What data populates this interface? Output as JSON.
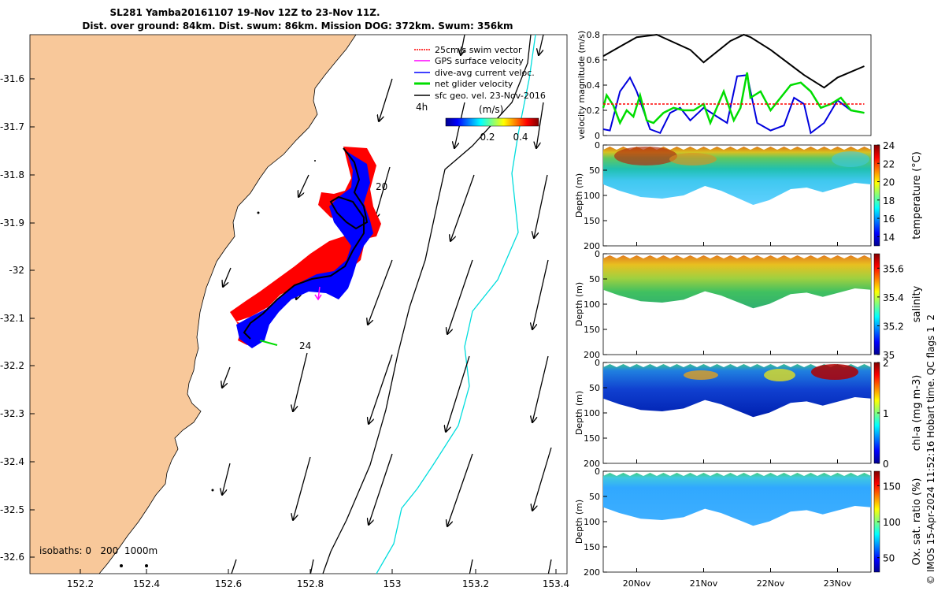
{
  "title": {
    "line1": "SL281 Yamba20161107 19-Nov 12Z to 23-Nov 11Z.",
    "line2": "Dist. over ground: 84km. Dist. swum: 86km. Mission DOG: 372km. Swum: 356km"
  },
  "map": {
    "lon_ticks": [
      "152.2",
      "152.4",
      "152.6",
      "152.8",
      "153",
      "153.2",
      "153.4"
    ],
    "lat_ticks": [
      "-31.6",
      "-31.7",
      "-31.8",
      "-31.9",
      "-32",
      "-32.1",
      "-32.2",
      "-32.3",
      "-32.4",
      "-32.5",
      "-32.6"
    ],
    "legend": [
      {
        "label": "25cm/s swim vector",
        "color": "#ff0000"
      },
      {
        "label": "GPS surface velocity",
        "color": "#ff00ff"
      },
      {
        "label": "dive-avg current veloc.",
        "color": "#0000ff"
      },
      {
        "label": "net glider velocity",
        "color": "#00dd00"
      },
      {
        "label": "sfc geo. vel. 23-Nov-2016",
        "color": "#000000"
      }
    ],
    "colorbar_label": "(m/s)",
    "colorbar_ticks": [
      "0.2",
      "0.4"
    ],
    "label_4h": "4h",
    "label_20": "20",
    "label_24": "24",
    "isobaths": "isobaths: 0   200  1000m",
    "land_color": "#f8c89a",
    "isobath_200_color": "#000000",
    "isobath_1000_color": "#00dddd"
  },
  "chart_data": [
    {
      "type": "line",
      "ylabel": "velocity magnitude (m/s)",
      "ylim": [
        0,
        0.8
      ],
      "yticks": [
        "0",
        "0.2",
        "0.4",
        "0.6",
        "0.8"
      ],
      "series": [
        {
          "color": "#000000",
          "x": [
            19.5,
            19.8,
            20.0,
            20.3,
            20.8,
            21.0,
            21.4,
            21.6,
            21.7,
            22.0,
            22.5,
            22.8,
            23.0,
            23.4
          ],
          "y": [
            0.63,
            0.72,
            0.78,
            0.8,
            0.68,
            0.58,
            0.75,
            0.8,
            0.78,
            0.68,
            0.48,
            0.38,
            0.46,
            0.55
          ]
        },
        {
          "color": "#0000dd",
          "x": [
            19.5,
            19.6,
            19.75,
            19.9,
            20.0,
            20.2,
            20.35,
            20.5,
            20.65,
            20.8,
            21.0,
            21.2,
            21.35,
            21.5,
            21.65,
            21.8,
            22.0,
            22.2,
            22.35,
            22.5,
            22.6,
            22.8,
            23.0,
            23.2,
            23.4
          ],
          "y": [
            0.05,
            0.04,
            0.35,
            0.46,
            0.35,
            0.05,
            0.02,
            0.18,
            0.22,
            0.12,
            0.22,
            0.15,
            0.1,
            0.47,
            0.48,
            0.1,
            0.04,
            0.08,
            0.3,
            0.25,
            0.02,
            0.1,
            0.28,
            0.2,
            0.18
          ]
        },
        {
          "color": "#00dd00",
          "x": [
            19.5,
            19.55,
            19.65,
            19.75,
            19.85,
            19.95,
            20.05,
            20.15,
            20.25,
            20.4,
            20.55,
            20.7,
            20.85,
            21.0,
            21.1,
            21.3,
            21.45,
            21.55,
            21.65,
            21.7,
            21.85,
            22.0,
            22.15,
            22.3,
            22.45,
            22.6,
            22.75,
            22.9,
            23.05,
            23.2,
            23.4
          ],
          "y": [
            0.22,
            0.32,
            0.24,
            0.1,
            0.2,
            0.15,
            0.32,
            0.12,
            0.1,
            0.18,
            0.22,
            0.2,
            0.2,
            0.25,
            0.1,
            0.35,
            0.12,
            0.22,
            0.5,
            0.3,
            0.35,
            0.2,
            0.3,
            0.4,
            0.42,
            0.35,
            0.22,
            0.25,
            0.3,
            0.2,
            0.18
          ]
        },
        {
          "color": "#ff0000",
          "dashed": true,
          "x": [
            19.5,
            23.4
          ],
          "y": [
            0.25,
            0.25
          ]
        }
      ]
    },
    {
      "type": "heatmap",
      "ylabel": "Depth (m)",
      "yticks": [
        "0",
        "50",
        "100",
        "150",
        "200"
      ],
      "colorbar_label": "temperature (°C)",
      "colorbar_ticks": [
        "14",
        "16",
        "18",
        "20",
        "22",
        "24"
      ],
      "vmin": 13,
      "vmax": 24
    },
    {
      "type": "heatmap",
      "ylabel": "Depth (m)",
      "yticks": [
        "0",
        "50",
        "100",
        "150",
        "200"
      ],
      "colorbar_label": "salinity",
      "colorbar_ticks": [
        "35",
        "35.2",
        "35.4",
        "35.6"
      ],
      "vmin": 35,
      "vmax": 35.7
    },
    {
      "type": "heatmap",
      "ylabel": "Depth (m)",
      "yticks": [
        "0",
        "50",
        "100",
        "150",
        "200"
      ],
      "colorbar_label": "chl-a (mg m-3)",
      "colorbar_ticks": [
        "0",
        "1",
        "2"
      ],
      "vmin": 0,
      "vmax": 2
    },
    {
      "type": "heatmap",
      "ylabel": "Depth (m)",
      "yticks": [
        "0",
        "50",
        "100",
        "150",
        "200"
      ],
      "colorbar_label": "Ox. sat. ratio (%)",
      "colorbar_ticks": [
        "50",
        "100",
        "150"
      ],
      "vmin": 30,
      "vmax": 170,
      "x_ticks": [
        "20Nov",
        "21Nov",
        "22Nov",
        "23Nov"
      ]
    }
  ],
  "footer": "© IMOS 15-Apr-2024 11:52:16 Hobart time. QC flags 1  2"
}
